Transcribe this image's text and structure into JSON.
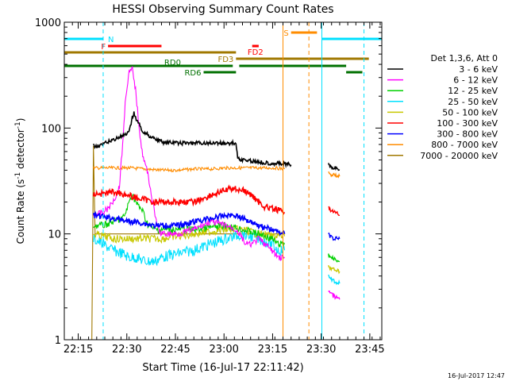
{
  "chart_data": {
    "type": "line",
    "title": "HESSI Observing Summary Count Rates",
    "xlabel": "Start Time (16-Jul-17 22:11:42)",
    "ylabel_main": "Count Rate (s",
    "ylabel_sup1": "-1",
    "ylabel_mid": " detector",
    "ylabel_sup2": "-1",
    "ylabel_end": ")",
    "footer_date": "16-Jul-2017 12:47",
    "x_range_minutes": [
      0,
      98
    ],
    "y_range": [
      1,
      1000
    ],
    "y_scale": "log",
    "x_ticks": [
      {
        "value": 4.3,
        "label": "22:15"
      },
      {
        "value": 19.3,
        "label": "22:30"
      },
      {
        "value": 34.3,
        "label": "22:45"
      },
      {
        "value": 49.3,
        "label": "23:00"
      },
      {
        "value": 64.3,
        "label": "23:15"
      },
      {
        "value": 79.3,
        "label": "23:30"
      },
      {
        "value": 94.3,
        "label": "23:45"
      }
    ],
    "y_ticks": [
      {
        "value": 1,
        "label": "1"
      },
      {
        "value": 10,
        "label": "10"
      },
      {
        "value": 100,
        "label": "100"
      },
      {
        "value": 1000,
        "label": "1000"
      }
    ],
    "legend_title": "Det 1,3,6, Att 0",
    "legend_position": "right",
    "series": [
      {
        "name": "3 - 6 keV",
        "color": "#000000",
        "x": [
          9,
          10,
          12,
          14,
          16,
          18,
          20,
          21,
          21.5,
          22,
          23,
          24,
          26,
          28,
          30,
          35,
          40,
          45,
          50,
          53,
          53.5,
          55,
          60,
          62,
          67,
          70
        ],
        "y": [
          68,
          68,
          70,
          75,
          80,
          84,
          90,
          125,
          140,
          125,
          110,
          95,
          85,
          80,
          74,
          72,
          72,
          72,
          72,
          72,
          52,
          50,
          48,
          47,
          46,
          45
        ]
      },
      {
        "name": "6 - 12 keV",
        "color": "#ff00ff",
        "x": [
          9,
          12,
          14,
          16,
          17,
          18,
          19,
          20,
          21,
          22,
          23,
          24,
          25,
          26,
          27,
          28,
          29,
          30,
          35,
          40,
          45,
          50,
          53,
          54,
          55,
          56,
          58,
          60,
          62,
          64,
          66,
          67,
          68
        ],
        "y": [
          15,
          16,
          18,
          23,
          28,
          70,
          210,
          330,
          360,
          230,
          110,
          60,
          45,
          35,
          22,
          15,
          11,
          10,
          10,
          11,
          13,
          12,
          11,
          10,
          9,
          8,
          8,
          9,
          8,
          7,
          6,
          6,
          6
        ]
      },
      {
        "name": "12 - 25 keV",
        "color": "#00d000",
        "x": [
          9,
          12,
          15,
          18,
          19,
          20,
          21,
          22,
          23,
          24,
          25,
          26,
          28,
          30,
          40,
          50,
          55,
          60,
          64,
          66,
          67,
          68
        ],
        "y": [
          12,
          12,
          13,
          14,
          16,
          20,
          24,
          20,
          18,
          17,
          14,
          12,
          11,
          11,
          11,
          12,
          11,
          10,
          9,
          8,
          8,
          8
        ]
      },
      {
        "name": "25 - 50 keV",
        "color": "#00e0ff",
        "x": [
          9,
          12,
          15,
          18,
          20,
          22,
          25,
          28,
          30,
          35,
          40,
          45,
          50,
          55,
          60,
          64,
          66,
          68
        ],
        "y": [
          9,
          8,
          7,
          6.5,
          6,
          6,
          5.5,
          5.5,
          6,
          6.5,
          7,
          8,
          9,
          10,
          9,
          8,
          7,
          7
        ]
      },
      {
        "name": "50 - 100 keV",
        "color": "#c8c800",
        "x": [
          9,
          12,
          15,
          18,
          20,
          22,
          25,
          30,
          35,
          40,
          45,
          50,
          55,
          60,
          64,
          68
        ],
        "y": [
          10,
          9.5,
          9,
          9,
          9,
          9,
          9,
          9,
          9.5,
          10,
          10.5,
          11,
          11,
          10,
          9.5,
          9.5
        ]
      },
      {
        "name": "100 - 300 keV",
        "color": "#ff0000",
        "x": [
          9,
          12,
          15,
          18,
          20,
          22,
          25,
          28,
          30,
          35,
          40,
          45,
          50,
          52,
          55,
          58,
          60,
          62,
          65,
          68
        ],
        "y": [
          24,
          24,
          25,
          24,
          23,
          22,
          21,
          20,
          20,
          20,
          20,
          23,
          26,
          27,
          26,
          23,
          20,
          18,
          17,
          16
        ]
      },
      {
        "name": "300 - 800 keV",
        "color": "#0000ff",
        "x": [
          9,
          12,
          15,
          18,
          20,
          22,
          25,
          28,
          30,
          35,
          40,
          45,
          50,
          53,
          55,
          58,
          60,
          64,
          68
        ],
        "y": [
          15,
          14.5,
          14,
          13.5,
          13,
          13,
          12.5,
          12,
          12,
          12,
          13,
          14,
          15,
          15,
          14,
          13,
          12,
          11,
          10
        ]
      },
      {
        "name": "800 - 7000 keV",
        "color": "#ff8c00",
        "x": [
          9,
          15,
          20,
          25,
          30,
          35,
          40,
          45,
          50,
          55,
          60,
          65,
          68
        ],
        "y": [
          42,
          42,
          42,
          41,
          40,
          40,
          41,
          41,
          42,
          42,
          42,
          42,
          41
        ]
      },
      {
        "name": "7000 - 20000 keV",
        "color": "#a07800",
        "x": [
          8.5,
          9,
          9.5,
          12,
          20,
          30,
          40,
          50,
          60,
          68
        ],
        "y": [
          1,
          68,
          10,
          10,
          10,
          10,
          10,
          10,
          10,
          10
        ]
      }
    ],
    "late_segments": [
      {
        "color": "#000000",
        "x": [
          81.5,
          82,
          83,
          84,
          85
        ],
        "y": [
          45,
          43,
          42,
          42,
          40
        ]
      },
      {
        "color": "#ff8c00",
        "x": [
          81.5,
          82,
          83,
          84,
          85
        ],
        "y": [
          38,
          37,
          36,
          36,
          35
        ]
      },
      {
        "color": "#ff0000",
        "x": [
          81.5,
          82,
          83,
          84,
          85
        ],
        "y": [
          18,
          17,
          16,
          16,
          15
        ]
      },
      {
        "color": "#0000ff",
        "x": [
          81.5,
          82,
          83,
          84,
          85
        ],
        "y": [
          10,
          9.5,
          9,
          9,
          9
        ]
      },
      {
        "color": "#00d000",
        "x": [
          81.5,
          82,
          83,
          84,
          85
        ],
        "y": [
          6.5,
          6,
          6,
          5.5,
          5.5
        ]
      },
      {
        "color": "#c8c800",
        "x": [
          81.5,
          82,
          83,
          84,
          85
        ],
        "y": [
          5,
          4.8,
          4.6,
          4.5,
          4.4
        ]
      },
      {
        "color": "#00e0ff",
        "x": [
          81.5,
          82,
          83,
          84,
          85
        ],
        "y": [
          4,
          3.8,
          3.6,
          3.5,
          3.4
        ]
      },
      {
        "color": "#ff00ff",
        "x": [
          81.5,
          82,
          83,
          84,
          85
        ],
        "y": [
          3,
          2.8,
          2.6,
          2.5,
          2.4
        ]
      }
    ],
    "vertical_lines": [
      {
        "x": 0,
        "color": "#00e0ff",
        "dashed": false
      },
      {
        "x": 12,
        "color": "#00e0ff",
        "dashed": true
      },
      {
        "x": 67.5,
        "color": "#ff8c00",
        "dashed": false
      },
      {
        "x": 75.5,
        "color": "#ff8c00",
        "dashed": true
      },
      {
        "x": 79.5,
        "color": "#00e0ff",
        "dashed": false
      },
      {
        "x": 92.5,
        "color": "#00e0ff",
        "dashed": true
      }
    ],
    "flag_bars": [
      {
        "label": "N",
        "color": "#00e0ff",
        "x0": 0,
        "x1": 12,
        "y": 1,
        "label_side": "right",
        "thick": 3
      },
      {
        "label": "",
        "color": "#00e0ff",
        "x0": 79.5,
        "x1": 92.5,
        "y": 1,
        "label_side": "none",
        "thick": 3
      },
      {
        "label": "",
        "color": "#00e0ff",
        "x0": 92.5,
        "x1": 98,
        "y": 1,
        "label_side": "none",
        "thick": 3
      },
      {
        "label": "S",
        "color": "#ff8c00",
        "x0": 70,
        "x1": 78,
        "y": 0,
        "label_side": "left",
        "thick": 3
      },
      {
        "label": "F",
        "color": "#ff0000",
        "x0": 13.5,
        "x1": 30,
        "y": 2,
        "label_side": "left",
        "thick": 3
      },
      {
        "label": "FD2",
        "color": "#ff0000",
        "x0": 58,
        "x1": 60,
        "y": 2,
        "label_side": "below",
        "thick": 3
      },
      {
        "label": "",
        "color": "#a07800",
        "x0": 0,
        "x1": 53,
        "y": 3,
        "label_side": "none",
        "thick": 3
      },
      {
        "label": "FD3",
        "color": "#a07800",
        "x0": 53,
        "x1": 94,
        "y": 4,
        "label_side": "left",
        "thick": 3
      },
      {
        "label": "",
        "color": "#007000",
        "x0": 0,
        "x1": 36,
        "y": 5,
        "label_side": "none",
        "thick": 3
      },
      {
        "label": "RD0",
        "color": "#007000",
        "x0": 36,
        "x1": 52,
        "y": 5,
        "label_side": "above",
        "thick": 3
      },
      {
        "label": "",
        "color": "#007000",
        "x0": 54,
        "x1": 87,
        "y": 5,
        "label_side": "none",
        "thick": 3
      },
      {
        "label": "RD6",
        "color": "#007000",
        "x0": 43,
        "x1": 53,
        "y": 6,
        "label_side": "left",
        "thick": 3
      },
      {
        "label": "",
        "color": "#007000",
        "x0": 87,
        "x1": 92,
        "y": 6,
        "label_side": "none",
        "thick": 3
      }
    ]
  }
}
